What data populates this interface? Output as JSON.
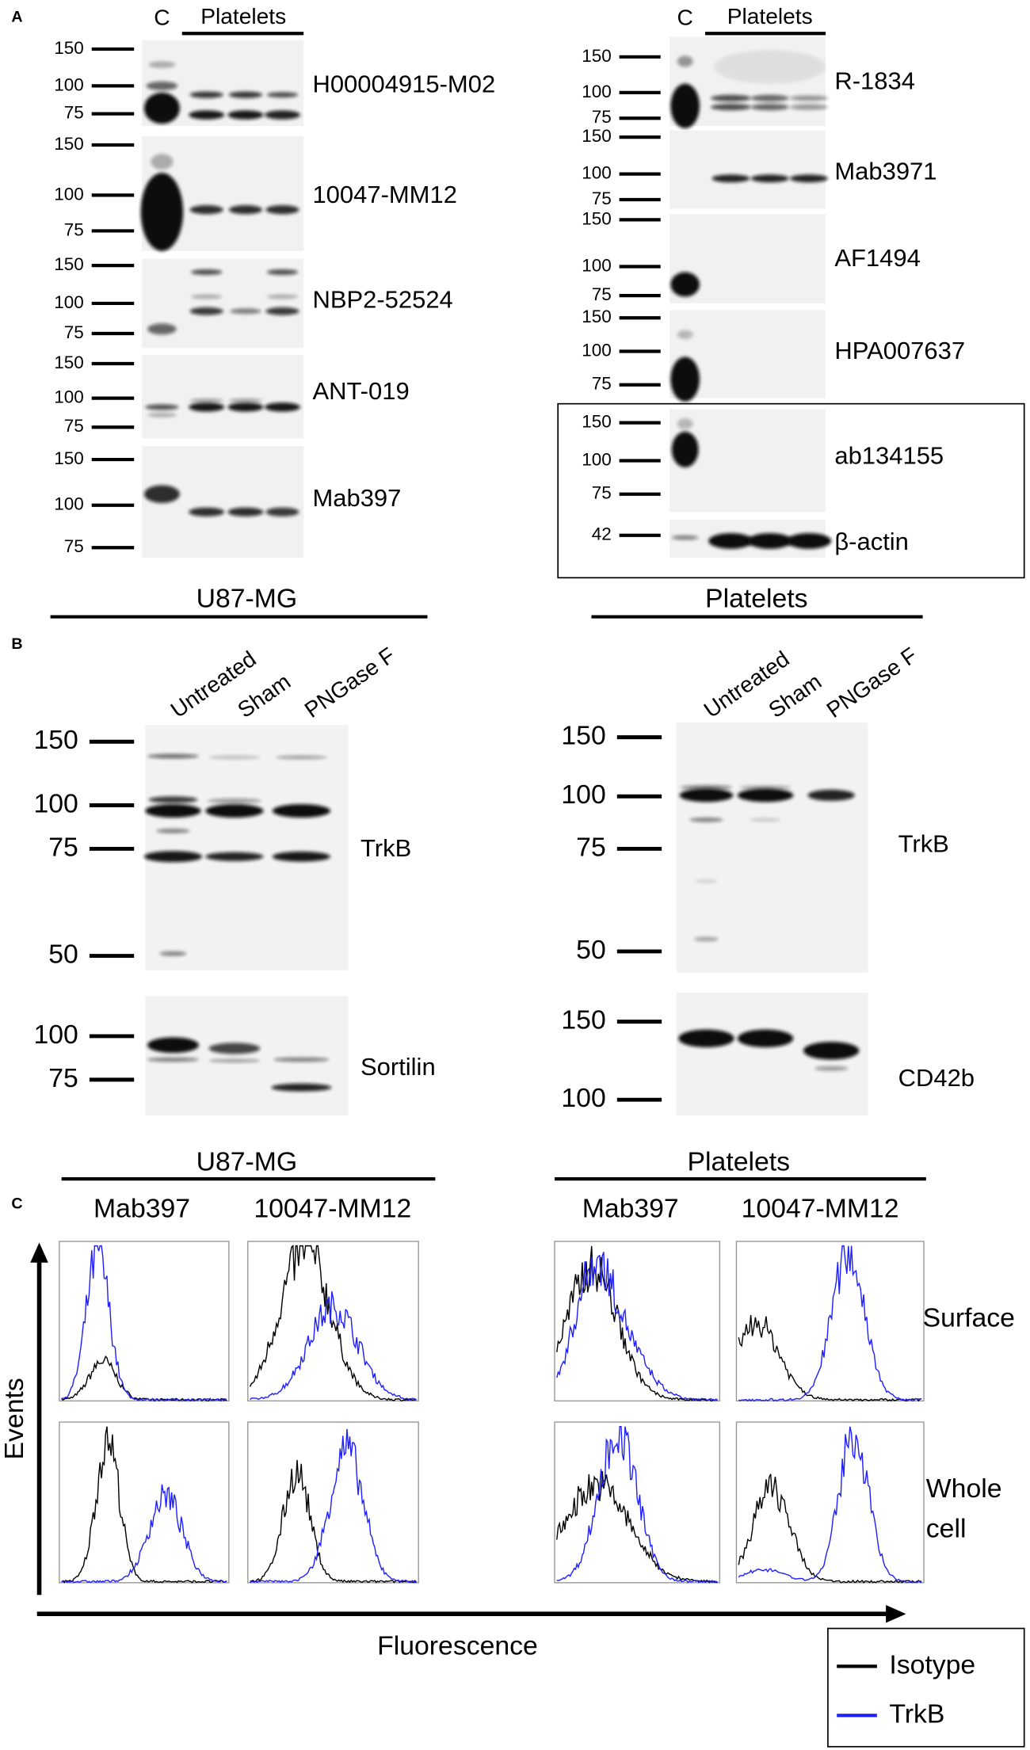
{
  "panel_a": {
    "label": "A",
    "left": {
      "control_label": "C",
      "group_label": "Platelets",
      "blots": [
        {
          "antibody": "H00004915-M02",
          "markers": [
            "150",
            "100",
            "75"
          ]
        },
        {
          "antibody": "10047-MM12",
          "markers": [
            "150",
            "100",
            "75"
          ]
        },
        {
          "antibody": "NBP2-52524",
          "markers": [
            "150",
            "100",
            "75"
          ]
        },
        {
          "antibody": "ANT-019",
          "markers": [
            "150",
            "100",
            "75"
          ]
        },
        {
          "antibody": "Mab397",
          "markers": [
            "150",
            "100",
            "75"
          ]
        }
      ]
    },
    "right": {
      "control_label": "C",
      "group_label": "Platelets",
      "blots": [
        {
          "antibody": "R-1834",
          "markers": [
            "150",
            "100",
            "75"
          ]
        },
        {
          "antibody": "Mab3971",
          "markers": [
            "150",
            "100",
            "75"
          ]
        },
        {
          "antibody": "AF1494",
          "markers": [
            "150",
            "100",
            "75"
          ]
        },
        {
          "antibody": "HPA007637",
          "markers": [
            "150",
            "100",
            "75"
          ]
        },
        {
          "antibody": "ab134155",
          "markers": [
            "150",
            "100",
            "75"
          ]
        },
        {
          "antibody": "β-actin",
          "markers": [
            "42"
          ]
        }
      ]
    }
  },
  "panel_b": {
    "label": "B",
    "left": {
      "group_label": "U87-MG",
      "lanes": [
        "Untreated",
        "Sham",
        "PNGase F"
      ],
      "blots": [
        {
          "target": "TrkB",
          "markers": [
            "150",
            "100",
            "75",
            "50"
          ]
        },
        {
          "target": "Sortilin",
          "markers": [
            "100",
            "75"
          ]
        }
      ]
    },
    "right": {
      "group_label": "Platelets",
      "lanes": [
        "Untreated",
        "Sham",
        "PNGase F"
      ],
      "blots": [
        {
          "target": "TrkB",
          "markers": [
            "150",
            "100",
            "75",
            "50"
          ]
        },
        {
          "target": "CD42b",
          "markers": [
            "150",
            "100"
          ]
        }
      ]
    }
  },
  "panel_c": {
    "label": "C",
    "y_axis_label": "Events",
    "x_axis_label": "Fluorescence",
    "left": {
      "group_label": "U87-MG",
      "antibodies": [
        "Mab397",
        "10047-MM12"
      ]
    },
    "right": {
      "group_label": "Platelets",
      "antibodies": [
        "Mab397",
        "10047-MM12"
      ]
    },
    "rows": [
      {
        "lines": [
          "Surface"
        ]
      },
      {
        "lines": [
          "Whole",
          "cell"
        ]
      }
    ],
    "legend": [
      {
        "name": "Isotype",
        "color": "#000000"
      },
      {
        "name": "TrkB",
        "color": "#2020ff"
      }
    ]
  }
}
